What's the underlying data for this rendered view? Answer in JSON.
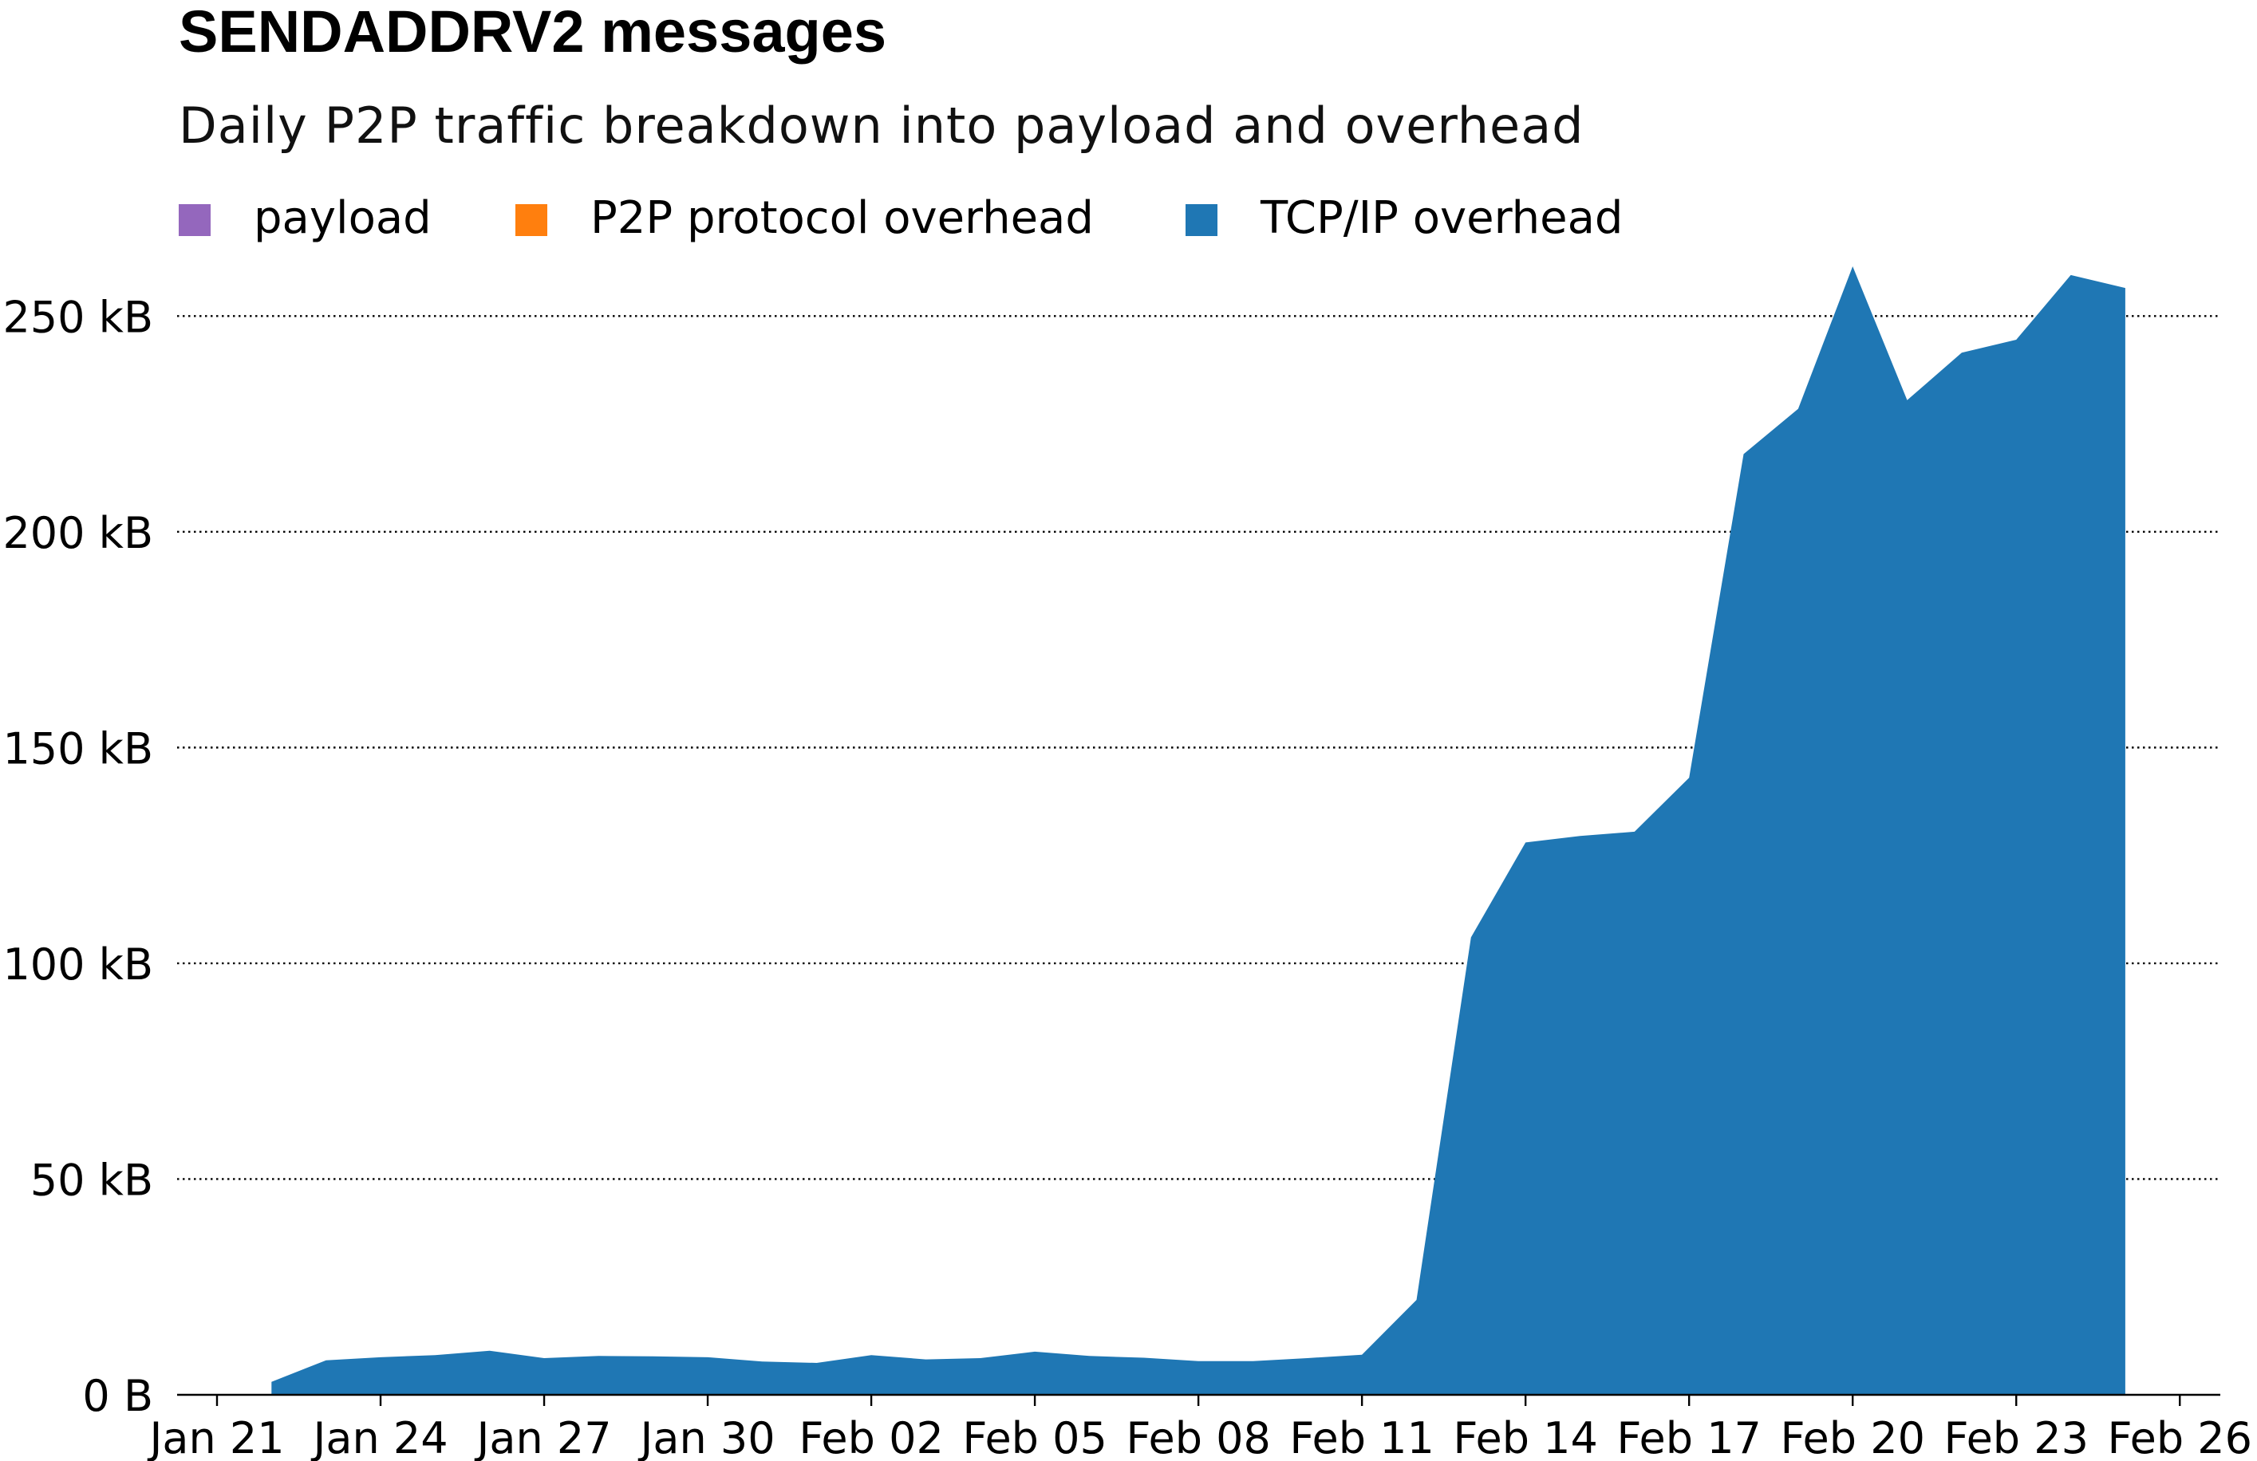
{
  "chart_data": {
    "type": "area",
    "title": "SENDADDRV2 messages",
    "subtitle": "Daily P2P traffic breakdown into payload and overhead",
    "legend_position": "top-left",
    "grid": true,
    "ylim": [
      0,
      275
    ],
    "xlim": [
      "2024-01-21",
      "2024-02-26"
    ],
    "y_ticks": [
      0,
      50,
      100,
      150,
      200,
      250
    ],
    "y_tick_labels": [
      "0 B",
      "50 kB",
      "100 kB",
      "150 kB",
      "200 kB",
      "250 kB"
    ],
    "x_ticks": [
      "2024-01-21",
      "2024-01-24",
      "2024-01-27",
      "2024-01-30",
      "2024-02-02",
      "2024-02-05",
      "2024-02-08",
      "2024-02-11",
      "2024-02-14",
      "2024-02-17",
      "2024-02-20",
      "2024-02-23",
      "2024-02-26"
    ],
    "x_tick_labels": [
      "Jan 21",
      "Jan 24",
      "Jan 27",
      "Jan 30",
      "Feb 02",
      "Feb 05",
      "Feb 08",
      "Feb 11",
      "Feb 14",
      "Feb 17",
      "Feb 20",
      "Feb 23",
      "Feb 26"
    ],
    "x": [
      "2024-01-22",
      "2024-01-23",
      "2024-01-24",
      "2024-01-25",
      "2024-01-26",
      "2024-01-27",
      "2024-01-28",
      "2024-01-29",
      "2024-01-30",
      "2024-01-31",
      "2024-02-01",
      "2024-02-02",
      "2024-02-03",
      "2024-02-04",
      "2024-02-05",
      "2024-02-06",
      "2024-02-07",
      "2024-02-08",
      "2024-02-09",
      "2024-02-10",
      "2024-02-11",
      "2024-02-12",
      "2024-02-13",
      "2024-02-14",
      "2024-02-15",
      "2024-02-16",
      "2024-02-17",
      "2024-02-18",
      "2024-02-19",
      "2024-02-20",
      "2024-02-21",
      "2024-02-22",
      "2024-02-23",
      "2024-02-24",
      "2024-02-25"
    ],
    "series": [
      {
        "name": "payload",
        "color": "#9467bd",
        "values": [
          0,
          0,
          0,
          0,
          0,
          0,
          0,
          0,
          0,
          0,
          0,
          0,
          0,
          0,
          0,
          0,
          0,
          0,
          0,
          0,
          0,
          0,
          0,
          0,
          0,
          0,
          0,
          0,
          0,
          0,
          0,
          0,
          0,
          0,
          0
        ]
      },
      {
        "name": "P2P protocol overhead",
        "color": "#ff7f0e",
        "values": [
          0,
          0,
          0,
          0,
          0,
          0,
          0,
          0,
          0,
          0,
          0,
          0,
          0,
          0,
          0,
          0,
          0,
          0,
          0,
          0,
          0,
          0,
          0,
          0,
          0,
          0,
          0,
          0,
          0,
          0,
          0,
          0,
          0,
          0,
          0
        ]
      },
      {
        "name": "TCP/IP overhead",
        "color": "#1f77b4",
        "values": [
          3,
          8,
          8.7,
          9.2,
          10.2,
          8.5,
          9.0,
          8.9,
          8.7,
          7.7,
          7.4,
          9.2,
          8.2,
          8.5,
          10.0,
          9.0,
          8.6,
          7.8,
          7.8,
          8.5,
          9.3,
          22,
          106,
          128,
          129.5,
          130.5,
          143,
          218,
          228.5,
          261.5,
          230.5,
          241.5,
          244.5,
          259.5,
          256.5
        ]
      }
    ]
  }
}
